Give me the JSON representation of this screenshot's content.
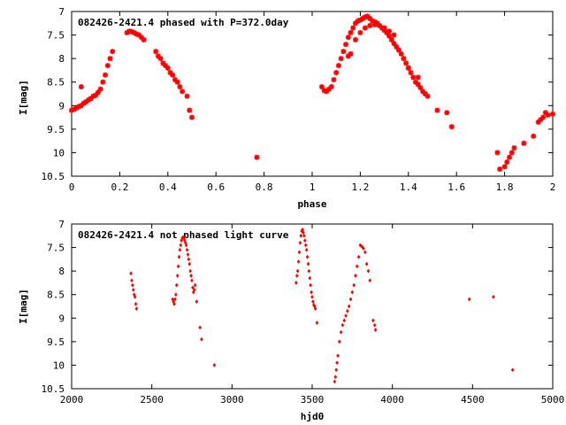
{
  "chart_data": [
    {
      "type": "scatter",
      "title": "082426-2421.4 phased with P=372.0day",
      "xlabel": "phase",
      "ylabel": "I[mag]",
      "xlim": [
        0,
        2
      ],
      "ylim": [
        10.5,
        7
      ],
      "y_inverted": true,
      "grid": false,
      "marker": "star",
      "color": "#ff0000",
      "xticks": [
        "0",
        "0.2",
        "0.4",
        "0.6",
        "0.8",
        "1",
        "1.2",
        "1.4",
        "1.6",
        "1.8",
        "2"
      ],
      "yticks": [
        "7",
        "7.5",
        "8",
        "8.5",
        "9",
        "9.5",
        "10",
        "10.5"
      ],
      "series": [
        {
          "x": [
            0.0,
            0.01,
            0.02,
            0.03,
            0.04,
            0.05,
            0.06,
            0.07,
            0.08,
            0.09,
            0.1,
            0.11,
            0.12,
            0.13,
            0.14,
            0.15,
            0.16,
            0.17,
            0.04,
            0.23,
            0.24,
            0.25,
            0.26,
            0.27,
            0.28,
            0.29,
            0.3,
            0.35,
            0.36,
            0.37,
            0.38,
            0.39,
            0.4,
            0.41,
            0.42,
            0.43,
            0.44,
            0.45,
            0.46,
            0.48,
            0.49,
            0.5,
            0.77,
            1.04,
            1.05,
            1.06,
            1.07,
            1.08,
            1.09,
            1.1,
            1.11,
            1.12,
            1.13,
            1.14,
            1.15,
            1.16,
            1.17,
            1.18,
            1.19,
            1.2,
            1.21,
            1.22,
            1.23,
            1.24,
            1.25,
            1.26,
            1.27,
            1.28,
            1.29,
            1.3,
            1.31,
            1.32,
            1.33,
            1.34,
            1.35,
            1.36,
            1.37,
            1.38,
            1.39,
            1.4,
            1.41,
            1.42,
            1.43,
            1.44,
            1.45,
            1.46,
            1.47,
            1.48,
            1.16,
            1.18,
            1.2,
            1.22,
            1.24,
            1.26,
            1.28,
            1.3,
            1.32,
            1.15,
            1.34,
            1.4,
            1.44,
            1.52,
            1.56,
            1.58,
            1.77,
            1.78,
            1.8,
            1.81,
            1.82,
            1.83,
            1.84,
            1.88,
            1.92,
            1.94,
            1.95,
            1.96,
            1.97,
            1.98,
            2.0
          ],
          "y": [
            9.1,
            9.08,
            9.05,
            9.02,
            9.0,
            8.95,
            8.92,
            8.88,
            8.85,
            8.8,
            8.78,
            8.72,
            8.65,
            8.5,
            8.35,
            8.15,
            8.0,
            7.85,
            8.6,
            7.45,
            7.42,
            7.43,
            7.45,
            7.48,
            7.5,
            7.55,
            7.6,
            7.85,
            7.95,
            8.0,
            8.1,
            8.15,
            8.2,
            8.3,
            8.35,
            8.45,
            8.5,
            8.6,
            8.7,
            8.8,
            9.1,
            9.25,
            10.1,
            8.6,
            8.68,
            8.7,
            8.65,
            8.6,
            8.45,
            8.3,
            8.15,
            8.0,
            7.85,
            7.7,
            7.55,
            7.45,
            7.35,
            7.25,
            7.2,
            7.18,
            7.15,
            7.12,
            7.1,
            7.15,
            7.2,
            7.22,
            7.25,
            7.3,
            7.35,
            7.4,
            7.45,
            7.52,
            7.6,
            7.68,
            7.75,
            7.82,
            7.9,
            8.0,
            8.1,
            8.2,
            8.3,
            8.4,
            8.5,
            8.55,
            8.62,
            8.7,
            8.75,
            8.8,
            7.9,
            7.6,
            7.45,
            7.35,
            7.3,
            7.28,
            7.3,
            7.35,
            7.42,
            7.95,
            7.5,
            8.2,
            8.4,
            9.1,
            9.15,
            9.45,
            10.0,
            10.35,
            10.3,
            10.2,
            10.1,
            10.0,
            9.9,
            9.8,
            9.65,
            9.35,
            9.3,
            9.25,
            9.15,
            9.2,
            9.18
          ]
        }
      ]
    },
    {
      "type": "scatter",
      "title": "082426-2421.4 not phased light curve",
      "xlabel": "hjd0",
      "ylabel": "I[mag]",
      "xlim": [
        2000,
        5000
      ],
      "ylim": [
        10.5,
        7
      ],
      "y_inverted": true,
      "grid": false,
      "marker": "diamond",
      "color": "#ff0000",
      "xticks": [
        "2000",
        "2500",
        "3000",
        "3500",
        "4000",
        "4500",
        "5000"
      ],
      "yticks": [
        "7",
        "7.5",
        "8",
        "8.5",
        "9",
        "9.5",
        "10",
        "10.5"
      ],
      "series": [
        {
          "x": [
            2370,
            2375,
            2380,
            2385,
            2390,
            2395,
            2400,
            2405,
            2630,
            2635,
            2640,
            2645,
            2650,
            2655,
            2660,
            2665,
            2670,
            2675,
            2680,
            2685,
            2690,
            2695,
            2700,
            2705,
            2710,
            2715,
            2720,
            2725,
            2730,
            2735,
            2740,
            2745,
            2750,
            2755,
            2760,
            2765,
            2770,
            2780,
            2800,
            2810,
            2890,
            3400,
            3405,
            3410,
            3415,
            3420,
            3425,
            3430,
            3435,
            3440,
            3445,
            3450,
            3455,
            3460,
            3465,
            3470,
            3475,
            3480,
            3485,
            3490,
            3495,
            3500,
            3505,
            3510,
            3515,
            3520,
            3530,
            3640,
            3645,
            3650,
            3655,
            3660,
            3670,
            3680,
            3690,
            3700,
            3710,
            3720,
            3730,
            3740,
            3750,
            3760,
            3770,
            3780,
            3790,
            3800,
            3810,
            3820,
            3830,
            3840,
            3850,
            3860,
            3880,
            3890,
            3895,
            4480,
            4630,
            4750
          ],
          "y": [
            8.05,
            8.2,
            8.3,
            8.4,
            8.5,
            8.55,
            8.7,
            8.8,
            8.6,
            8.65,
            8.7,
            8.6,
            8.5,
            8.3,
            8.1,
            7.9,
            7.7,
            7.55,
            7.45,
            7.35,
            7.3,
            7.28,
            7.3,
            7.35,
            7.4,
            7.45,
            7.55,
            7.65,
            7.75,
            7.85,
            8.0,
            8.1,
            8.2,
            8.35,
            8.45,
            8.4,
            8.3,
            8.65,
            9.2,
            9.45,
            10.0,
            8.25,
            8.1,
            8.0,
            7.8,
            7.6,
            7.4,
            7.25,
            7.15,
            7.12,
            7.18,
            7.25,
            7.35,
            7.45,
            7.55,
            7.7,
            7.85,
            8.0,
            8.15,
            8.3,
            8.45,
            8.55,
            8.65,
            8.72,
            8.75,
            8.8,
            9.1,
            10.35,
            10.25,
            10.1,
            9.95,
            9.8,
            9.5,
            9.3,
            9.15,
            9.05,
            8.95,
            8.85,
            8.75,
            8.6,
            8.45,
            8.3,
            8.1,
            7.9,
            7.7,
            7.45,
            7.48,
            7.52,
            7.6,
            7.85,
            8.0,
            8.2,
            9.05,
            9.15,
            9.25,
            8.6,
            8.55,
            10.1
          ]
        }
      ]
    }
  ]
}
